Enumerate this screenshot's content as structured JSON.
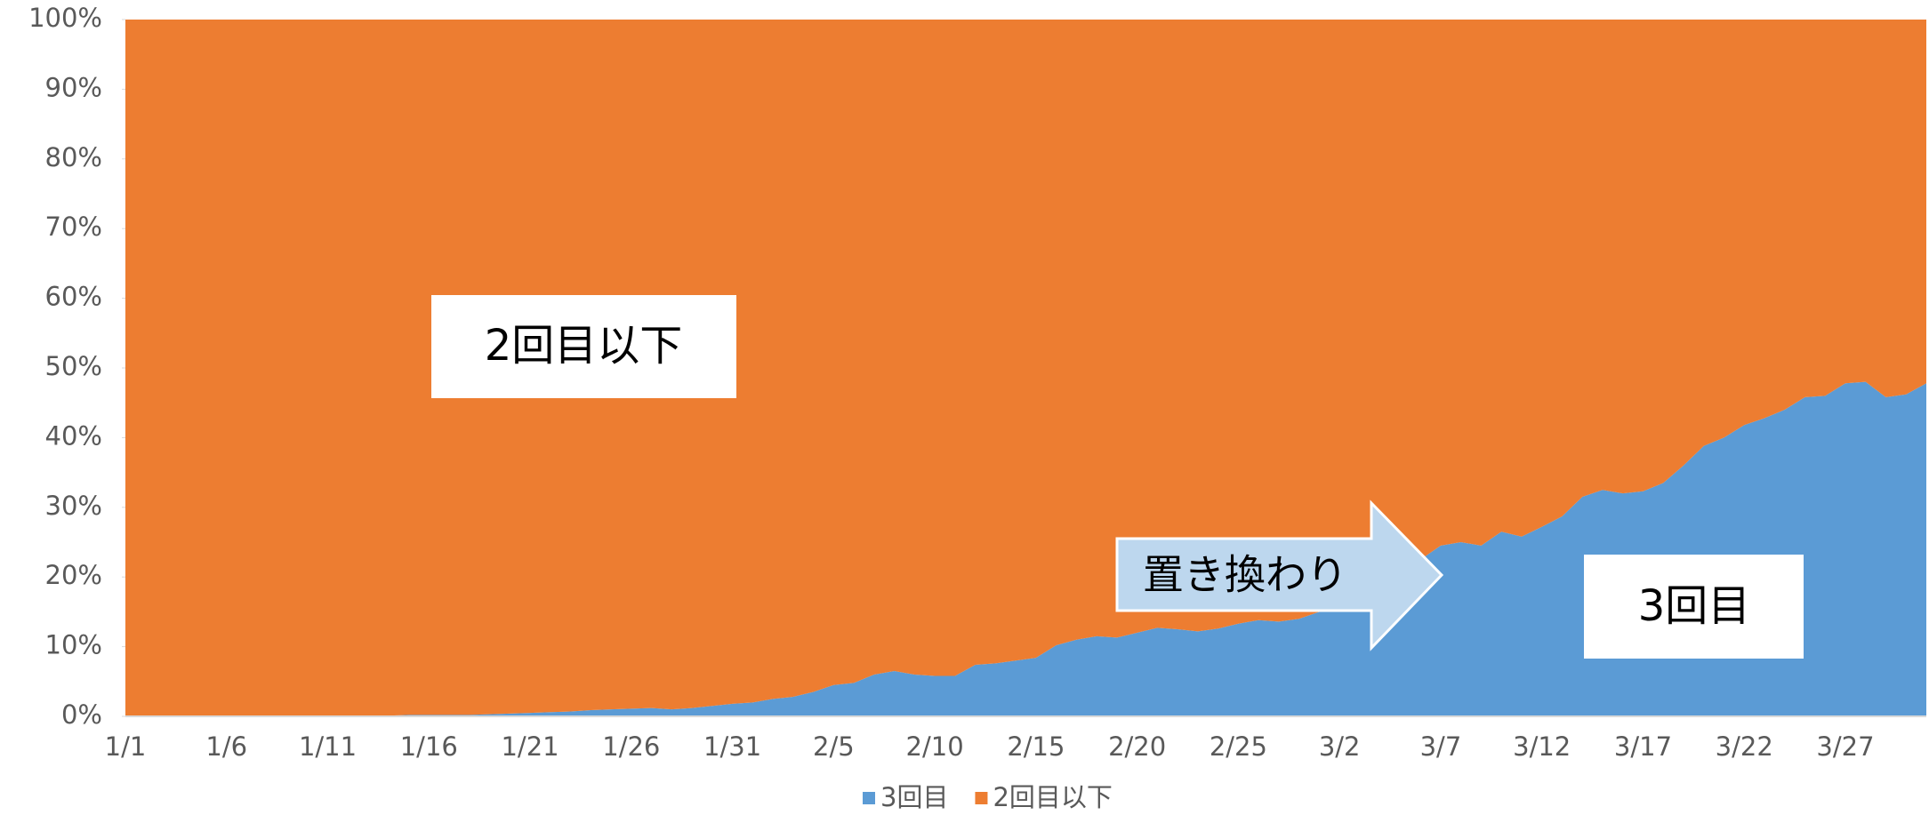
{
  "chart_data": {
    "type": "stacked_area_percent",
    "categories": [
      "1/1",
      null,
      null,
      null,
      null,
      "1/6",
      null,
      null,
      null,
      null,
      "1/11",
      null,
      null,
      null,
      null,
      "1/16",
      null,
      null,
      null,
      null,
      "1/21",
      null,
      null,
      null,
      null,
      "1/26",
      null,
      null,
      null,
      null,
      "1/31",
      null,
      null,
      null,
      null,
      "2/5",
      null,
      null,
      null,
      null,
      "2/10",
      null,
      null,
      null,
      null,
      "2/15",
      null,
      null,
      null,
      null,
      "2/20",
      null,
      null,
      null,
      null,
      "2/25",
      null,
      null,
      null,
      null,
      "3/2",
      null,
      null,
      null,
      null,
      "3/7",
      null,
      null,
      null,
      null,
      "3/12",
      null,
      null,
      null,
      null,
      "3/17",
      null,
      null,
      null,
      null,
      "3/22",
      null,
      null,
      null,
      null,
      "3/27",
      null,
      null,
      null,
      null
    ],
    "series": [
      {
        "name": "3回目",
        "color": "#5b9bd5",
        "values": [
          0,
          0,
          0,
          0,
          0,
          0,
          0,
          0,
          0,
          0,
          0.1,
          0.1,
          0.1,
          0.1,
          0.2,
          0.2,
          0.2,
          0.2,
          0.3,
          0.4,
          0.5,
          0.6,
          0.7,
          0.9,
          1,
          1.1,
          1.2,
          1,
          1.2,
          1.5,
          1.8,
          2,
          2.5,
          2.8,
          3.5,
          4.5,
          4.8,
          6,
          6.5,
          6,
          5.8,
          5.8,
          7.4,
          7.6,
          8,
          8.4,
          10.2,
          11,
          11.5,
          11.3,
          12,
          12.7,
          12.5,
          12.2,
          12.6,
          13.3,
          13.8,
          13.6,
          14,
          15,
          16.5,
          18,
          19.5,
          21,
          22.5,
          24.5,
          25,
          24.5,
          26.5,
          25.8,
          27.2,
          28.7,
          31.5,
          32.5,
          32,
          32.3,
          33.5,
          36,
          38.8,
          40,
          41.8,
          42.8,
          44,
          45.8,
          46,
          47.8,
          48,
          45.8,
          46.2,
          47.8
        ]
      },
      {
        "name": "2回目以下",
        "color": "#ed7d31",
        "values": [
          100,
          100,
          100,
          100,
          100,
          100,
          100,
          100,
          100,
          100,
          99.9,
          99.9,
          99.9,
          99.9,
          99.8,
          99.8,
          99.8,
          99.8,
          99.7,
          99.6,
          99.5,
          99.4,
          99.3,
          99.1,
          99,
          98.9,
          98.8,
          99,
          98.8,
          98.5,
          98.2,
          98,
          97.5,
          97.2,
          96.5,
          95.5,
          95.2,
          94,
          93.5,
          94,
          94.2,
          94.2,
          92.6,
          92.4,
          92,
          91.6,
          89.8,
          89,
          88.5,
          88.7,
          88,
          87.3,
          87.5,
          87.8,
          87.4,
          86.7,
          86.2,
          86.4,
          86,
          85,
          83.5,
          82,
          80.5,
          79,
          77.5,
          75.5,
          75,
          75.5,
          73.5,
          74.2,
          72.8,
          71.3,
          68.5,
          67.5,
          68,
          67.7,
          66.5,
          64,
          61.2,
          60,
          58.2,
          57.2,
          56,
          54.2,
          54,
          52.2,
          52,
          54.2,
          53.8,
          52.2
        ]
      }
    ],
    "ylim": [
      0,
      100
    ],
    "yticks": [
      {
        "value": 0,
        "label": "0%"
      },
      {
        "value": 10,
        "label": "10%"
      },
      {
        "value": 20,
        "label": "20%"
      },
      {
        "value": 30,
        "label": "30%"
      },
      {
        "value": 40,
        "label": "40%"
      },
      {
        "value": 50,
        "label": "50%"
      },
      {
        "value": 60,
        "label": "60%"
      },
      {
        "value": 70,
        "label": "70%"
      },
      {
        "value": 80,
        "label": "80%"
      },
      {
        "value": 90,
        "label": "90%"
      },
      {
        "value": 100,
        "label": "100%"
      }
    ],
    "annotations": [
      "2回目以下",
      "置き換わり",
      "3回目"
    ],
    "legend": "bottom"
  }
}
